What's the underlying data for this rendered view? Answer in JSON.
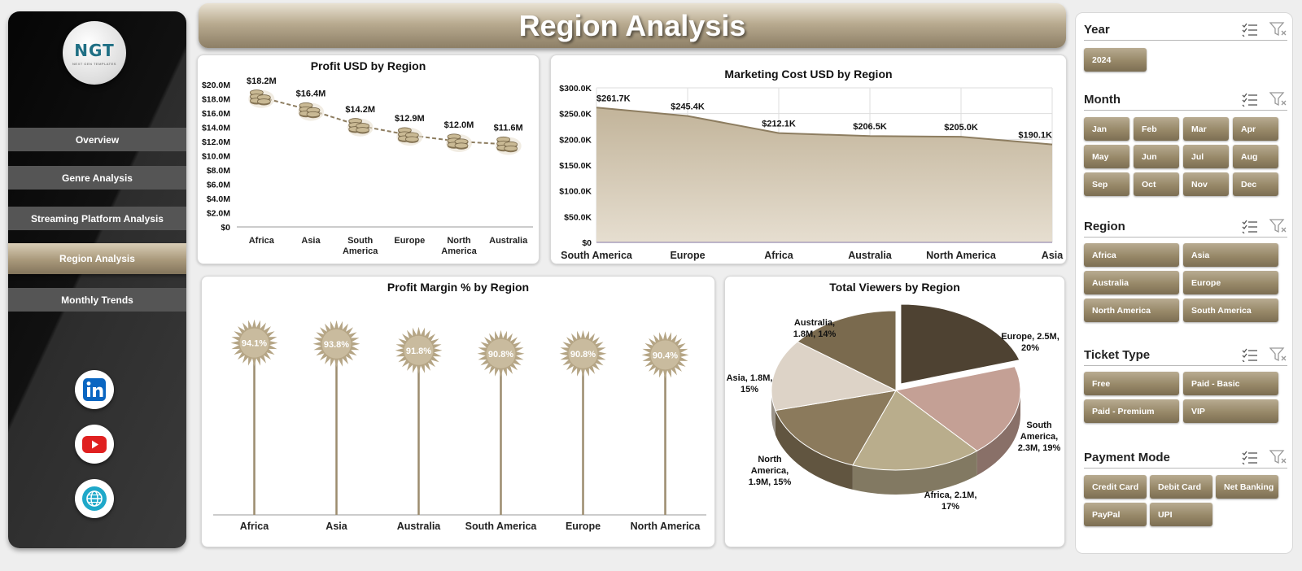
{
  "header": {
    "title": "Region Analysis"
  },
  "sidebar": {
    "logo_text": "NGT",
    "logo_subtext": "NEXT GEN TEMPLATES",
    "nav": [
      {
        "label": "Overview"
      },
      {
        "label": "Genre Analysis"
      },
      {
        "label": "Streaming Platform Analysis"
      },
      {
        "label": "Region Analysis",
        "active": true
      },
      {
        "label": "Monthly Trends"
      }
    ],
    "social": [
      "linkedin-icon",
      "youtube-icon",
      "web-globe-icon"
    ]
  },
  "slicers": {
    "year": {
      "title": "Year",
      "options": [
        "2024"
      ]
    },
    "month": {
      "title": "Month",
      "options": [
        "Jan",
        "Feb",
        "Mar",
        "Apr",
        "May",
        "Jun",
        "Jul",
        "Aug",
        "Sep",
        "Oct",
        "Nov",
        "Dec"
      ]
    },
    "region": {
      "title": "Region",
      "options": [
        "Africa",
        "Asia",
        "Australia",
        "Europe",
        "North America",
        "South America"
      ]
    },
    "ticket": {
      "title": "Ticket Type",
      "options": [
        "Free",
        "Paid - Basic",
        "Paid - Premium",
        "VIP"
      ]
    },
    "payment": {
      "title": "Payment Mode",
      "options": [
        "Credit Card",
        "Debit Card",
        "Net Banking",
        "PayPal",
        "UPI"
      ]
    }
  },
  "colors": {
    "accent": "#9c8c6e",
    "dark_accent": "#7c6e53",
    "area_fill": "#cfc3ad",
    "line": "#8d7d60"
  },
  "chart_data": [
    {
      "id": "profit",
      "type": "line",
      "title": "Profit USD by Region",
      "categories": [
        "Africa",
        "Asia",
        "South America",
        "Europe",
        "North America",
        "Australia"
      ],
      "category_lines": [
        [
          "Africa"
        ],
        [
          "Asia"
        ],
        [
          "South",
          "America"
        ],
        [
          "Europe"
        ],
        [
          "North",
          "America"
        ],
        [
          "Australia"
        ]
      ],
      "values": [
        18.2,
        16.4,
        14.2,
        12.9,
        12.0,
        11.6
      ],
      "labels": [
        "$18.2M",
        "$16.4M",
        "$14.2M",
        "$12.9M",
        "$12.0M",
        "$11.6M"
      ],
      "yticks": [
        "$0",
        "$2.0M",
        "$4.0M",
        "$6.0M",
        "$8.0M",
        "$10.0M",
        "$12.0M",
        "$14.0M",
        "$16.0M",
        "$18.0M",
        "$20.0M"
      ],
      "ylim": [
        0,
        20
      ],
      "marker": "coin-stack-icon"
    },
    {
      "id": "marketing",
      "type": "area",
      "title": "Marketing Cost USD by Region",
      "categories": [
        "South America",
        "Europe",
        "Africa",
        "Australia",
        "North America",
        "Asia"
      ],
      "values": [
        261.7,
        245.4,
        212.1,
        206.5,
        205.0,
        190.1
      ],
      "labels": [
        "$261.7K",
        "$245.4K",
        "$212.1K",
        "$206.5K",
        "$205.0K",
        "$190.1K"
      ],
      "yticks": [
        "$0",
        "$50.0K",
        "$100.0K",
        "$150.0K",
        "$200.0K",
        "$250.0K",
        "$300.0K"
      ],
      "ylim": [
        0,
        300
      ],
      "grid": true
    },
    {
      "id": "margin",
      "type": "bar",
      "title": "Profit Margin % by Region",
      "categories": [
        "Africa",
        "Asia",
        "Australia",
        "South America",
        "Europe",
        "North America"
      ],
      "values": [
        94.1,
        93.8,
        91.8,
        90.8,
        90.8,
        90.4
      ],
      "labels": [
        "94.1%",
        "93.8%",
        "91.8%",
        "90.8%",
        "90.8%",
        "90.4%"
      ],
      "marker": "starburst"
    },
    {
      "id": "viewers",
      "type": "pie",
      "title": "Total Viewers by Region",
      "slices": [
        {
          "name": "Europe",
          "value": 2.5,
          "percent": 20,
          "lines": [
            "Europe, 2.5M,",
            "20%"
          ],
          "color": "#4e4232"
        },
        {
          "name": "South America",
          "value": 2.3,
          "percent": 19,
          "lines": [
            "South",
            "America,",
            "2.3M, 19%"
          ],
          "color": "#c4a095"
        },
        {
          "name": "Africa",
          "value": 2.1,
          "percent": 17,
          "lines": [
            "Africa, 2.1M,",
            "17%"
          ],
          "color": "#b9ad8c"
        },
        {
          "name": "North America",
          "value": 1.9,
          "percent": 15,
          "lines": [
            "North",
            "America,",
            "1.9M, 15%"
          ],
          "color": "#8b7a5c"
        },
        {
          "name": "Asia",
          "value": 1.8,
          "percent": 15,
          "lines": [
            "Asia, 1.8M,",
            "15%"
          ],
          "color": "#ddd3c7"
        },
        {
          "name": "Australia",
          "value": 1.8,
          "percent": 14,
          "lines": [
            "Australia,",
            "1.8M, 14%"
          ],
          "color": "#7a6a4e"
        }
      ]
    }
  ]
}
